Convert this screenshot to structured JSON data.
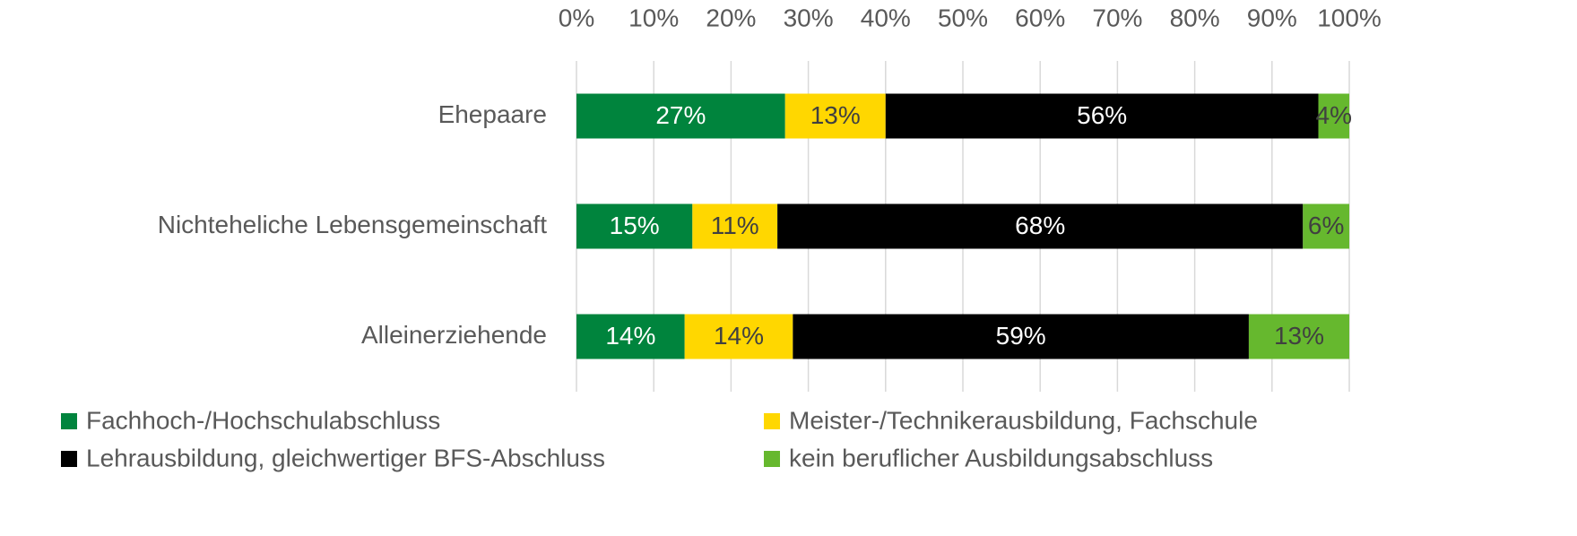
{
  "chart_data": {
    "type": "stacked-bar-horizontal",
    "categories": [
      "Ehepaare",
      "Nichteheliche Lebensgemeinschaft",
      "Alleinerziehende"
    ],
    "series": [
      {
        "name": "Fachhoch-/Hochschulabschluss",
        "color": "#00843d",
        "values": [
          27,
          15,
          14
        ],
        "value_labels": [
          "27%",
          "15%",
          "14%"
        ]
      },
      {
        "name": "Meister-/Technikerausbildung, Fachschule",
        "color": "#ffd700",
        "values": [
          13,
          11,
          14
        ],
        "value_labels": [
          "13%",
          "11%",
          "14%"
        ]
      },
      {
        "name": "Lehrausbildung, gleichwertiger BFS-Abschluss",
        "color": "#000000",
        "values": [
          56,
          68,
          59
        ],
        "value_labels": [
          "56%",
          "68%",
          "59%"
        ]
      },
      {
        "name": "kein beruflicher Ausbildungsabschluss",
        "color": "#66b82e",
        "values": [
          4,
          6,
          13
        ],
        "value_labels": [
          "4%",
          "6%",
          "13%"
        ]
      }
    ],
    "xlim": [
      0,
      100
    ],
    "xticks": [
      {
        "value": 0,
        "label": "0%"
      },
      {
        "value": 10,
        "label": "10%"
      },
      {
        "value": 20,
        "label": "20%"
      },
      {
        "value": 30,
        "label": "30%"
      },
      {
        "value": 40,
        "label": "40%"
      },
      {
        "value": 50,
        "label": "50%"
      },
      {
        "value": 60,
        "label": "60%"
      },
      {
        "value": 70,
        "label": "70%"
      },
      {
        "value": 80,
        "label": "80%"
      },
      {
        "value": 90,
        "label": "90%"
      },
      {
        "value": 100,
        "label": "100%"
      }
    ],
    "grid": true,
    "legend": "bottom"
  }
}
